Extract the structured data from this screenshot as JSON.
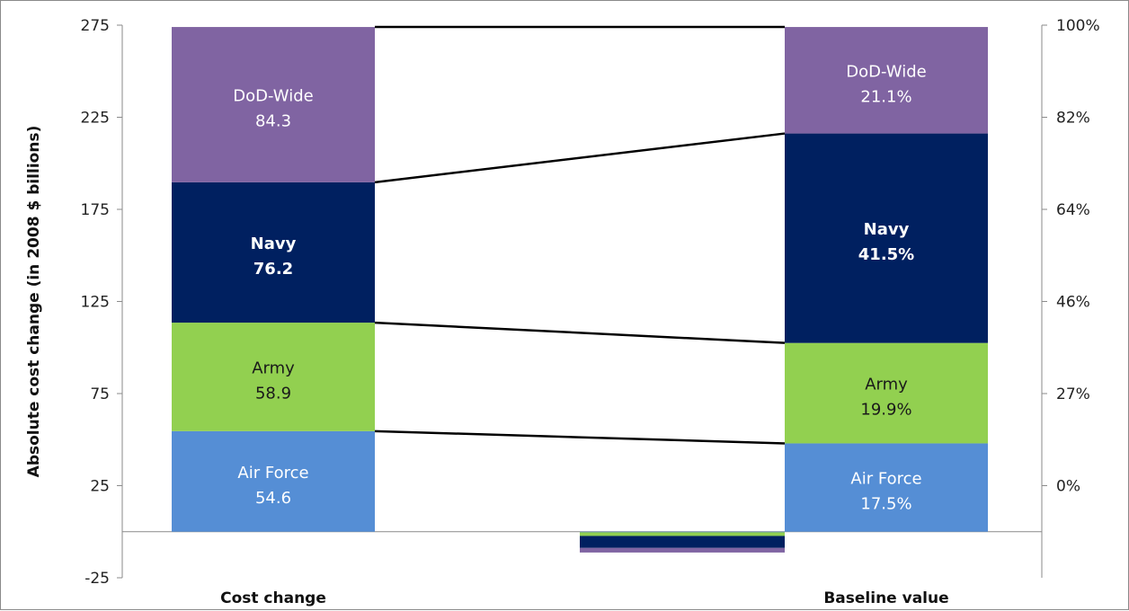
{
  "chart_data": {
    "type": "bar",
    "stacked": true,
    "ylabel": "Absolute cost change (in 2008 $ billions)",
    "ylim": [
      -25,
      275
    ],
    "yticks": [
      "275",
      "225",
      "175",
      "125",
      "75",
      "25",
      "-25"
    ],
    "y2ticks": [
      "100%",
      "82%",
      "64%",
      "46%",
      "27%",
      "0%"
    ],
    "categories": [
      "Cost change",
      "Baseline value"
    ],
    "segment_order": [
      "Air Force",
      "Army",
      "Navy",
      "DoD-Wide"
    ],
    "cost_change": [
      {
        "name": "Air Force",
        "value": 54.6,
        "label": "54.6",
        "color": "#558ED5"
      },
      {
        "name": "Army",
        "value": 58.9,
        "label": "58.9",
        "color": "#92D050"
      },
      {
        "name": "Navy",
        "value": 76.2,
        "label": "76.2",
        "color": "#002060"
      },
      {
        "name": "DoD-Wide",
        "value": 84.3,
        "label": "84.3",
        "color": "#8064A2"
      }
    ],
    "baseline_value": [
      {
        "name": "Air Force",
        "percent": 17.5,
        "label": "17.5%",
        "color": "#558ED5"
      },
      {
        "name": "Army",
        "percent": 19.9,
        "label": "19.9%",
        "color": "#92D050"
      },
      {
        "name": "Navy",
        "percent": 41.5,
        "label": "41.5%",
        "color": "#002060"
      },
      {
        "name": "DoD-Wide",
        "percent": 21.1,
        "label": "21.1%",
        "color": "#8064A2"
      }
    ],
    "small_negative_bar": [
      {
        "name": "Air Force",
        "value": -0.3,
        "color": "#558ED5"
      },
      {
        "name": "Army",
        "value": -2.0,
        "color": "#92D050"
      },
      {
        "name": "Navy",
        "value": -6.5,
        "color": "#002060"
      },
      {
        "name": "DoD-Wide",
        "value": -2.5,
        "color": "#8064A2"
      }
    ],
    "grid": false
  }
}
